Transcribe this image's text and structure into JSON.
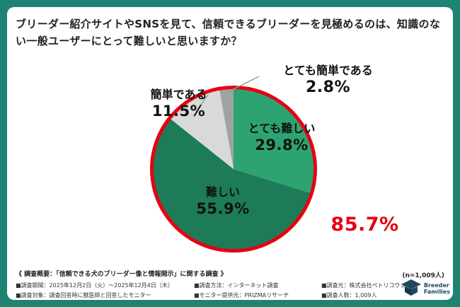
{
  "colors": {
    "background": "#1e8373",
    "card": "#ffffff",
    "accent_red": "#e60012",
    "green_dark": "#1d7c57",
    "green_medium": "#2ea372",
    "gray_light": "#d8d9d9",
    "gray_dark": "#9fa2a2"
  },
  "title": "ブリーダー紹介サイトやSNSを見て、信頼できるブリーダーを見極めるのは、知識のない一般ユーザーにとって難しいと思いますか？",
  "chart_data": {
    "type": "pie",
    "title": "ブリーダー紹介サイトやSNSを見て、信頼できるブリーダーを見極めるのは、知識のない一般ユーザーにとって難しいと思いますか？",
    "start_angle_deg": 0,
    "direction": "clockwise",
    "outline_color": "#e60012",
    "segments": [
      {
        "label": "とても難しい",
        "value": 29.8,
        "display": "29.8%",
        "color": "#2ea372",
        "label_placement": "inside"
      },
      {
        "label": "難しい",
        "value": 55.9,
        "display": "55.9%",
        "color": "#1d7c57",
        "label_placement": "inside"
      },
      {
        "label": "簡単である",
        "value": 11.5,
        "display": "11.5%",
        "color": "#d8d9d9",
        "label_placement": "outside"
      },
      {
        "label": "とても簡単である",
        "value": 2.8,
        "display": "2.8%",
        "color": "#9fa2a2",
        "label_placement": "outside"
      }
    ],
    "annotation": {
      "text": "85.7%",
      "color": "#e60012"
    }
  },
  "survey": {
    "heading": "《 調査概要：「信頼できる犬のブリーダー像と情報開示」に関する調査 》",
    "sample_note": "(n=1,009人)",
    "items": [
      "■調査期間：2025年12月2日（火）〜2025年12月4日（木）",
      "■調査方法：インターネット調査",
      "■調査元：株式会社ペトリコウェル",
      "■調査対象：調査回答時に獣医師と回答したモニター",
      "■モニター提供元：PRIZMAリサーチ",
      "■調査人数：1,009人"
    ]
  },
  "logo": {
    "line1": "Breeder",
    "line2": "Families"
  }
}
